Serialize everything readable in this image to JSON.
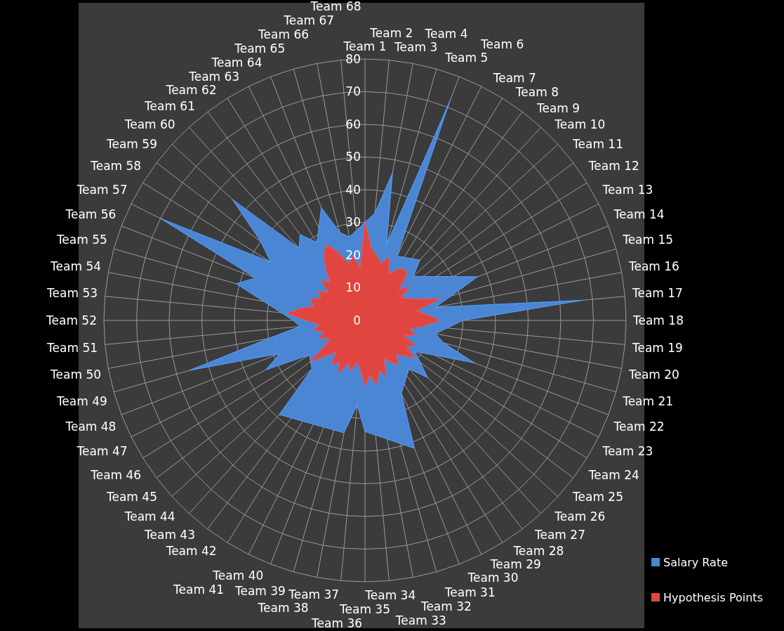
{
  "chart_data": {
    "type": "radar",
    "categories": [
      "Team 1",
      "Team 2",
      "Team 3",
      "Team 4",
      "Team 5",
      "Team 6",
      "Team 7",
      "Team 8",
      "Team 9",
      "Team 10",
      "Team 11",
      "Team 12",
      "Team 13",
      "Team 14",
      "Team 15",
      "Team 16",
      "Team 17",
      "Team 18",
      "Team 19",
      "Team 20",
      "Team 21",
      "Team 22",
      "Team 23",
      "Team 24",
      "Team 25",
      "Team 26",
      "Team 27",
      "Team 28",
      "Team 29",
      "Team 30",
      "Team 31",
      "Team 32",
      "Team 33",
      "Team 34",
      "Team 35",
      "Team 36",
      "Team 37",
      "Team 38",
      "Team 39",
      "Team 40",
      "Team 41",
      "Team 42",
      "Team 43",
      "Team 44",
      "Team 45",
      "Team 46",
      "Team 47",
      "Team 48",
      "Team 49",
      "Team 50",
      "Team 51",
      "Team 52",
      "Team 53",
      "Team 54",
      "Team 55",
      "Team 56",
      "Team 57",
      "Team 58",
      "Team 59",
      "Team 60",
      "Team 61",
      "Team 62",
      "Team 63",
      "Team 64",
      "Team 65",
      "Team 66",
      "Team 67",
      "Team 68"
    ],
    "series": [
      {
        "name": "Salary Rate",
        "color": "#4a86d4",
        "values": [
          null,
          33,
          46,
          24,
          72,
          22,
          null,
          null,
          25,
          20,
          null,
          null,
          null,
          37,
          null,
          22,
          67,
          30,
          null,
          22,
          25,
          36,
          null,
          18,
          null,
          26,
          20,
          null,
          null,
          25,
          42,
          null,
          null,
          null,
          34,
          26,
          35,
          null,
          null,
          null,
          null,
          null,
          39,
          22,
          null,
          20,
          34,
          28,
          56,
          30,
          20,
          22,
          null,
          null,
          41,
          36,
          70,
          34,
          40,
          55,
          30,
          33,
          28,
          null,
          37,
          28,
          26,
          null
        ]
      },
      {
        "name": "Hypothesis Points",
        "color": "#e0453f",
        "values": [
          30,
          22,
          20,
          18,
          21,
          16,
          18,
          20,
          19,
          14,
          17,
          13,
          15,
          18,
          24,
          16,
          19,
          23,
          18,
          14,
          16,
          13,
          17,
          15,
          19,
          16,
          14,
          17,
          15,
          13,
          18,
          16,
          20,
          17,
          20,
          15,
          13,
          16,
          14,
          18,
          15,
          17,
          13,
          16,
          21,
          14,
          12,
          15,
          13,
          16,
          14,
          18,
          24,
          20,
          16,
          18,
          15,
          17,
          14,
          18,
          16,
          20,
          24,
          26,
          22,
          18,
          20,
          16
        ]
      }
    ],
    "ylim": [
      0,
      80
    ],
    "yticks": [
      0,
      10,
      20,
      30,
      40,
      50,
      60,
      70,
      80
    ],
    "grid": true,
    "legend": "bottom right"
  }
}
